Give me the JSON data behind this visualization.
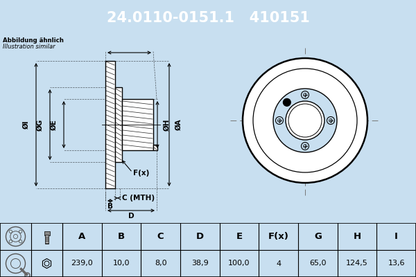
{
  "part_number": "24.0110-0151.1",
  "oem_number": "410151",
  "note_line1": "Abbildung ähnlich",
  "note_line2": "Illustration similar",
  "header_bg": "#0033cc",
  "header_text_color": "#ffffff",
  "bg_color": "#c8dff0",
  "drawing_bg": "#c8dff0",
  "table_bg": "#ffffff",
  "table_headers": [
    "A",
    "B",
    "C",
    "D",
    "E",
    "F(x)",
    "G",
    "H",
    "I"
  ],
  "table_values": [
    "239,0",
    "10,0",
    "8,0",
    "38,9",
    "100,0",
    "4",
    "65,0",
    "124,5",
    "13,6"
  ]
}
